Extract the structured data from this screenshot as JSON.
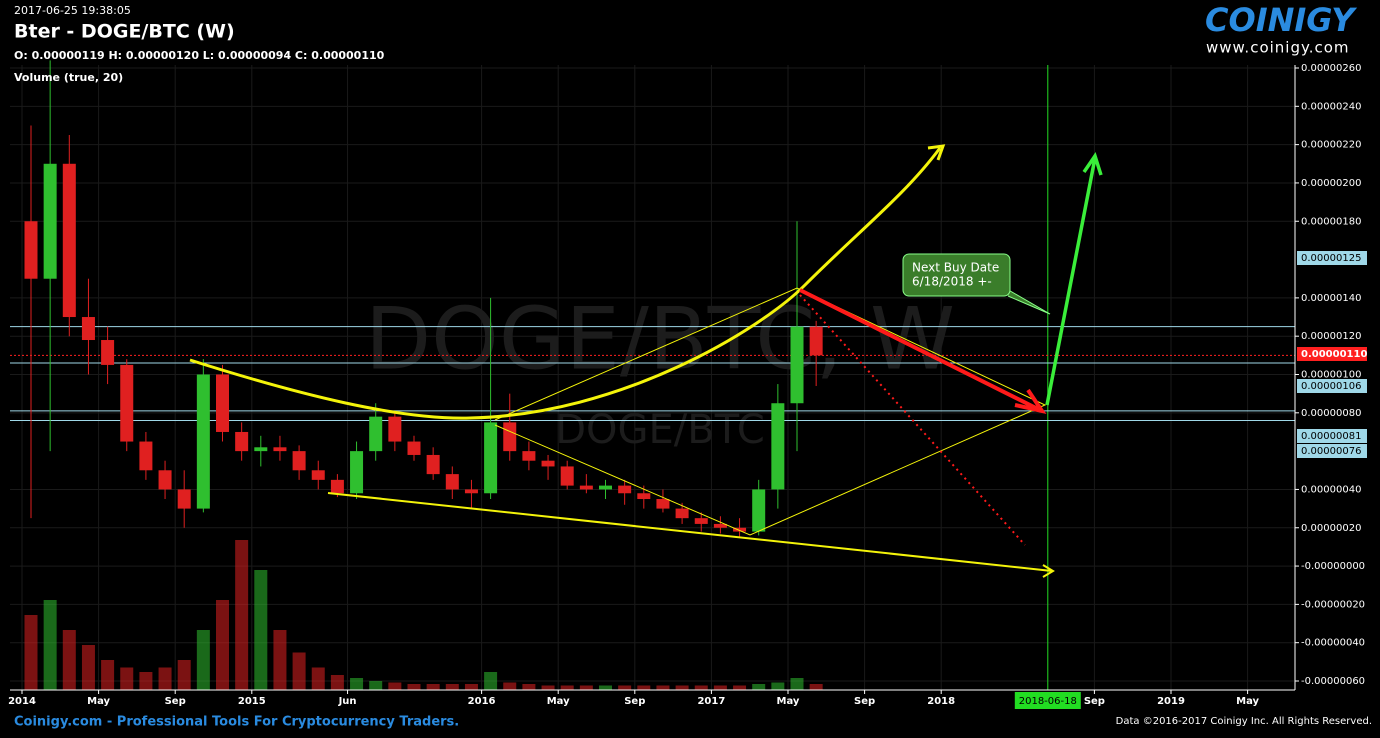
{
  "header": {
    "timestamp": "2017-06-25 19:38:05",
    "title": "Bter - DOGE/BTC (W)",
    "ohlc": "O: 0.00000119 H: 0.00000120 L: 0.00000094 C: 0.00000110",
    "volume_label": "Volume (true, 20)"
  },
  "logo": {
    "name": "COINIGY",
    "url": "www.coinigy.com"
  },
  "watermark": {
    "main": "DOGE/BTC, W",
    "sub": "DOGE/BTC"
  },
  "footer": {
    "left": "Coinigy.com - Professional Tools For Cryptocurrency Traders.",
    "right": "Data ©2016-2017 Coinigy Inc. All Rights Reserved."
  },
  "chart_data": {
    "type": "candlestick",
    "up_color": "#2fbf2f",
    "down_color": "#e02020",
    "candles": [
      {
        "x": "2014-01",
        "open": 1.8e-06,
        "high": 2.3e-06,
        "low": 2.5e-07,
        "close": 1.5e-06,
        "volume": 50
      },
      {
        "x": "2014-02",
        "open": 1.5e-06,
        "high": 2.64e-06,
        "low": 6e-07,
        "close": 2.1e-06,
        "volume": 60
      },
      {
        "x": "2014-03",
        "open": 2.1e-06,
        "high": 2.25e-06,
        "low": 1.2e-06,
        "close": 1.3e-06,
        "volume": 40
      },
      {
        "x": "2014-04",
        "open": 1.3e-06,
        "high": 1.5e-06,
        "low": 1e-06,
        "close": 1.18e-06,
        "volume": 30
      },
      {
        "x": "2014-05",
        "open": 1.18e-06,
        "high": 1.25e-06,
        "low": 9.5e-07,
        "close": 1.05e-06,
        "volume": 20
      },
      {
        "x": "2014-06",
        "open": 1.05e-06,
        "high": 1.08e-06,
        "low": 6e-07,
        "close": 6.5e-07,
        "volume": 15
      },
      {
        "x": "2014-07",
        "open": 6.5e-07,
        "high": 7e-07,
        "low": 4.5e-07,
        "close": 5e-07,
        "volume": 12
      },
      {
        "x": "2014-08",
        "open": 5e-07,
        "high": 5.5e-07,
        "low": 3.5e-07,
        "close": 4e-07,
        "volume": 15
      },
      {
        "x": "2014-09",
        "open": 4e-07,
        "high": 5e-07,
        "low": 2e-07,
        "close": 3e-07,
        "volume": 20
      },
      {
        "x": "2014-10",
        "open": 3e-07,
        "high": 1.08e-06,
        "low": 2.8e-07,
        "close": 1e-06,
        "volume": 40
      },
      {
        "x": "2014-11",
        "open": 1e-06,
        "high": 1.05e-06,
        "low": 6.5e-07,
        "close": 7e-07,
        "volume": 60
      },
      {
        "x": "2014-12",
        "open": 7e-07,
        "high": 7.5e-07,
        "low": 5.5e-07,
        "close": 6e-07,
        "volume": 100
      },
      {
        "x": "2015-01",
        "open": 6e-07,
        "high": 6.8e-07,
        "low": 5.2e-07,
        "close": 6.2e-07,
        "volume": 80
      },
      {
        "x": "2015-02",
        "open": 6.2e-07,
        "high": 6.8e-07,
        "low": 5.5e-07,
        "close": 6e-07,
        "volume": 40
      },
      {
        "x": "2015-03",
        "open": 6e-07,
        "high": 6.3e-07,
        "low": 4.5e-07,
        "close": 5e-07,
        "volume": 25
      },
      {
        "x": "2015-04",
        "open": 5e-07,
        "high": 5.5e-07,
        "low": 4e-07,
        "close": 4.5e-07,
        "volume": 15
      },
      {
        "x": "2015-05",
        "open": 4.5e-07,
        "high": 4.8e-07,
        "low": 3.6e-07,
        "close": 3.8e-07,
        "volume": 10
      },
      {
        "x": "2015-06",
        "open": 3.8e-07,
        "high": 6.5e-07,
        "low": 3.5e-07,
        "close": 6e-07,
        "volume": 8
      },
      {
        "x": "2015-07",
        "open": 6e-07,
        "high": 8.5e-07,
        "low": 5.5e-07,
        "close": 7.8e-07,
        "volume": 6
      },
      {
        "x": "2015-08",
        "open": 7.8e-07,
        "high": 8e-07,
        "low": 6e-07,
        "close": 6.5e-07,
        "volume": 5
      },
      {
        "x": "2015-09",
        "open": 6.5e-07,
        "high": 6.8e-07,
        "low": 5.5e-07,
        "close": 5.8e-07,
        "volume": 4
      },
      {
        "x": "2015-10",
        "open": 5.8e-07,
        "high": 6.2e-07,
        "low": 4.5e-07,
        "close": 4.8e-07,
        "volume": 4
      },
      {
        "x": "2015-11",
        "open": 4.8e-07,
        "high": 5.2e-07,
        "low": 3.5e-07,
        "close": 4e-07,
        "volume": 4
      },
      {
        "x": "2015-12",
        "open": 4e-07,
        "high": 4.5e-07,
        "low": 3e-07,
        "close": 3.8e-07,
        "volume": 4
      },
      {
        "x": "2016-01",
        "open": 3.8e-07,
        "high": 1.4e-06,
        "low": 3.5e-07,
        "close": 7.5e-07,
        "volume": 12
      },
      {
        "x": "2016-02",
        "open": 7.5e-07,
        "high": 9e-07,
        "low": 5.5e-07,
        "close": 6e-07,
        "volume": 5
      },
      {
        "x": "2016-03",
        "open": 6e-07,
        "high": 6.5e-07,
        "low": 5e-07,
        "close": 5.5e-07,
        "volume": 4
      },
      {
        "x": "2016-04",
        "open": 5.5e-07,
        "high": 5.8e-07,
        "low": 4.5e-07,
        "close": 5.2e-07,
        "volume": 3
      },
      {
        "x": "2016-05",
        "open": 5.2e-07,
        "high": 5.5e-07,
        "low": 4e-07,
        "close": 4.2e-07,
        "volume": 3
      },
      {
        "x": "2016-06",
        "open": 4.2e-07,
        "high": 4.8e-07,
        "low": 3.8e-07,
        "close": 4e-07,
        "volume": 3
      },
      {
        "x": "2016-07",
        "open": 4e-07,
        "high": 4.5e-07,
        "low": 3.5e-07,
        "close": 4.2e-07,
        "volume": 3
      },
      {
        "x": "2016-08",
        "open": 4.2e-07,
        "high": 4.5e-07,
        "low": 3.2e-07,
        "close": 3.8e-07,
        "volume": 3
      },
      {
        "x": "2016-09",
        "open": 3.8e-07,
        "high": 4.2e-07,
        "low": 3e-07,
        "close": 3.5e-07,
        "volume": 3
      },
      {
        "x": "2016-10",
        "open": 3.5e-07,
        "high": 4e-07,
        "low": 2.8e-07,
        "close": 3e-07,
        "volume": 3
      },
      {
        "x": "2016-11",
        "open": 3e-07,
        "high": 3.3e-07,
        "low": 2.2e-07,
        "close": 2.5e-07,
        "volume": 3
      },
      {
        "x": "2016-12",
        "open": 2.5e-07,
        "high": 2.8e-07,
        "low": 1.8e-07,
        "close": 2.2e-07,
        "volume": 3
      },
      {
        "x": "2017-01",
        "open": 2.2e-07,
        "high": 2.6e-07,
        "low": 1.7e-07,
        "close": 2e-07,
        "volume": 3
      },
      {
        "x": "2017-02",
        "open": 2e-07,
        "high": 2.5e-07,
        "low": 1.5e-07,
        "close": 1.8e-07,
        "volume": 3
      },
      {
        "x": "2017-03",
        "open": 1.8e-07,
        "high": 4.5e-07,
        "low": 1.6e-07,
        "close": 4e-07,
        "volume": 4
      },
      {
        "x": "2017-04",
        "open": 4e-07,
        "high": 9.5e-07,
        "low": 3e-07,
        "close": 8.5e-07,
        "volume": 5
      },
      {
        "x": "2017-05",
        "open": 8.5e-07,
        "high": 1.8e-06,
        "low": 6e-07,
        "close": 1.25e-06,
        "volume": 8
      },
      {
        "x": "2017-06",
        "open": 1.25e-06,
        "high": 1.28e-06,
        "low": 9.4e-07,
        "close": 1.1e-06,
        "volume": 4
      }
    ],
    "xticks": [
      {
        "value": "2014-01",
        "label": "2014"
      },
      {
        "value": "2014-05",
        "label": "May"
      },
      {
        "value": "2014-09",
        "label": "Sep"
      },
      {
        "value": "2015-01",
        "label": "2015"
      },
      {
        "value": "2015-06",
        "label": "Jun"
      },
      {
        "value": "2016-01",
        "label": "2016"
      },
      {
        "value": "2016-05",
        "label": "May"
      },
      {
        "value": "2016-09",
        "label": "Sep"
      },
      {
        "value": "2017-01",
        "label": "2017"
      },
      {
        "value": "2017-05",
        "label": "May"
      },
      {
        "value": "2017-09",
        "label": "Sep"
      },
      {
        "value": "2018-01",
        "label": "2018"
      },
      {
        "value": "2018-09",
        "label": "Sep"
      },
      {
        "value": "2019-01",
        "label": "2019"
      },
      {
        "value": "2019-05",
        "label": "May"
      }
    ],
    "marker": {
      "value": "2018-06-18",
      "label": "2018-06-18",
      "color": "#22dd22"
    },
    "ylim": [
      -6e-07,
      2.6e-06
    ],
    "yticks": [
      {
        "value": 2.6e-06,
        "label": "0.00000260"
      },
      {
        "value": 2.4e-06,
        "label": "0.00000240"
      },
      {
        "value": 2.2e-06,
        "label": "0.00000220"
      },
      {
        "value": 2e-06,
        "label": "0.00000200"
      },
      {
        "value": 1.8e-06,
        "label": "0.00000180"
      },
      {
        "value": 1.4e-06,
        "label": "0.00000140"
      },
      {
        "value": 1.2e-06,
        "label": "0.00000120"
      },
      {
        "value": 1e-06,
        "label": "0.00000100"
      },
      {
        "value": 8e-07,
        "label": "0.00000080"
      },
      {
        "value": 4e-07,
        "label": "0.00000040"
      },
      {
        "value": 2e-07,
        "label": "0.00000020"
      },
      {
        "value": 0,
        "label": "-0.00000000"
      },
      {
        "value": -2e-07,
        "label": "-0.00000020"
      },
      {
        "value": -4e-07,
        "label": "-0.00000040"
      },
      {
        "value": -6e-07,
        "label": "-0.00000060"
      }
    ],
    "price_lines": [
      {
        "value": 1.25e-06,
        "label": "0.00000125",
        "color": "#9fd8e8"
      },
      {
        "value": 1.1e-06,
        "label": "0.00000110",
        "color": "#ff2020"
      },
      {
        "value": 1.06e-06,
        "label": "0.00000106",
        "color": "#9fd8e8"
      },
      {
        "value": 8.1e-07,
        "label": "0.00000081",
        "color": "#9fd8e8"
      },
      {
        "value": 7.6e-07,
        "label": "0.00000076",
        "color": "#9fd8e8"
      }
    ],
    "annotation": [
      "Next Buy Date",
      "6/18/2018 +-"
    ],
    "grid": true
  }
}
